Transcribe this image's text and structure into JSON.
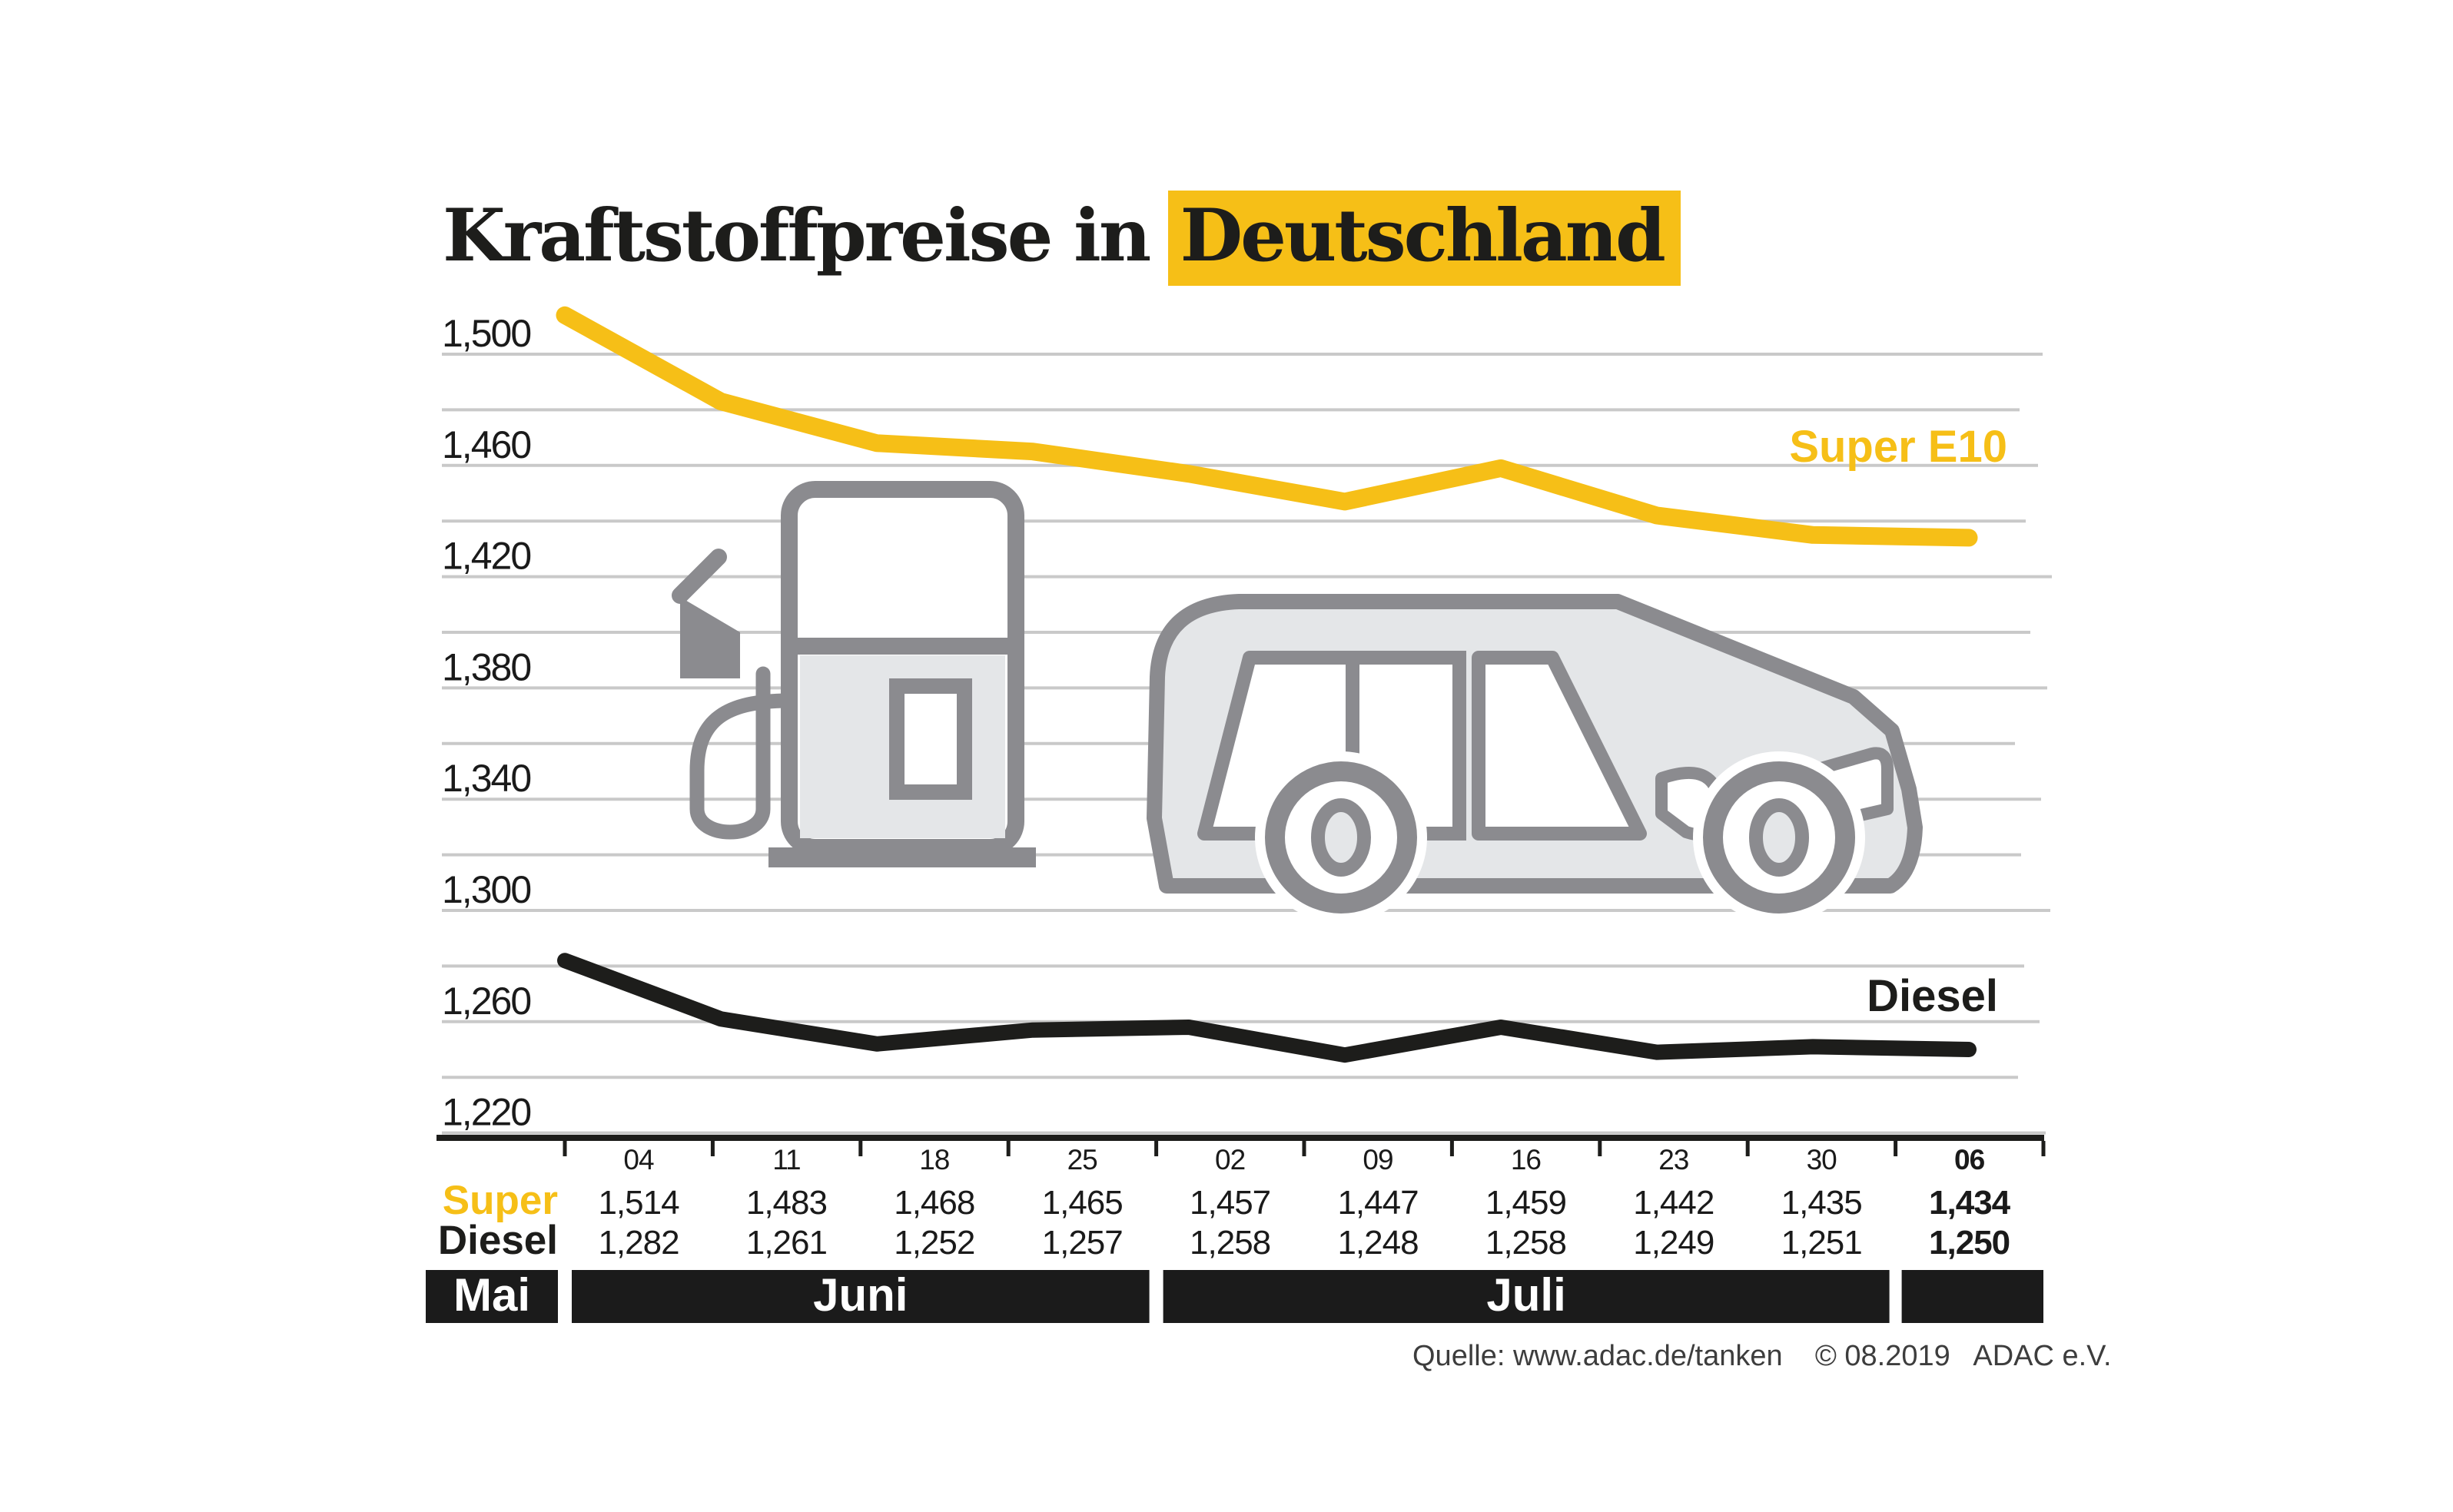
{
  "title": {
    "text_prefix": "Kraftstoffpreise in",
    "text_highlight": "Deutschland"
  },
  "colors": {
    "yellow": "#F6BF17",
    "black": "#1D1D1B",
    "gridline": "#C9C9C9",
    "axis": "#1D1D1B",
    "value_text": "#1A1A1A",
    "icon_outline": "#8B8B8F",
    "icon_fill": "#E4E6E8",
    "month_bar": "#1B1B1B"
  },
  "chart": {
    "legend_super": "Super E10",
    "legend_diesel": "Diesel",
    "row_label_super": "Super",
    "row_label_diesel": "Diesel",
    "source": "Quelle: www.adac.de/tanken    © 08.2019   ADAC e.V."
  },
  "chart_data": {
    "type": "line",
    "title": "Kraftstoffpreise in Deutschland",
    "categories": [
      "04",
      "11",
      "18",
      "25",
      "02",
      "09",
      "16",
      "23",
      "30",
      "06"
    ],
    "series": [
      {
        "name": "Super",
        "chart_label": "Super E10",
        "color_key": "yellow",
        "values": [
          1514,
          1483,
          1468,
          1465,
          1457,
          1447,
          1459,
          1442,
          1435,
          1434
        ]
      },
      {
        "name": "Diesel",
        "chart_label": "Diesel",
        "color_key": "black",
        "values": [
          1282,
          1261,
          1252,
          1257,
          1258,
          1248,
          1258,
          1249,
          1251,
          1250
        ]
      }
    ],
    "y_axis": {
      "min": 1220,
      "max": 1500,
      "gridline_step": 20,
      "label_step": 40,
      "tick_labels": [
        "1,500",
        "1,460",
        "1,420",
        "1,380",
        "1,340",
        "1,300",
        "1,260",
        "1,220"
      ]
    },
    "x_axis": {
      "month_groups": [
        {
          "label": "Mai",
          "columns": []
        },
        {
          "label": "Juni",
          "columns": [
            "04",
            "11",
            "18",
            "25"
          ]
        },
        {
          "label": "Juli",
          "columns": [
            "02",
            "09",
            "16",
            "23",
            "30"
          ]
        },
        {
          "label": "",
          "columns": [
            "06"
          ]
        }
      ]
    },
    "emphasized_last_column": true,
    "grid": true,
    "legend_position": "right-inline"
  }
}
